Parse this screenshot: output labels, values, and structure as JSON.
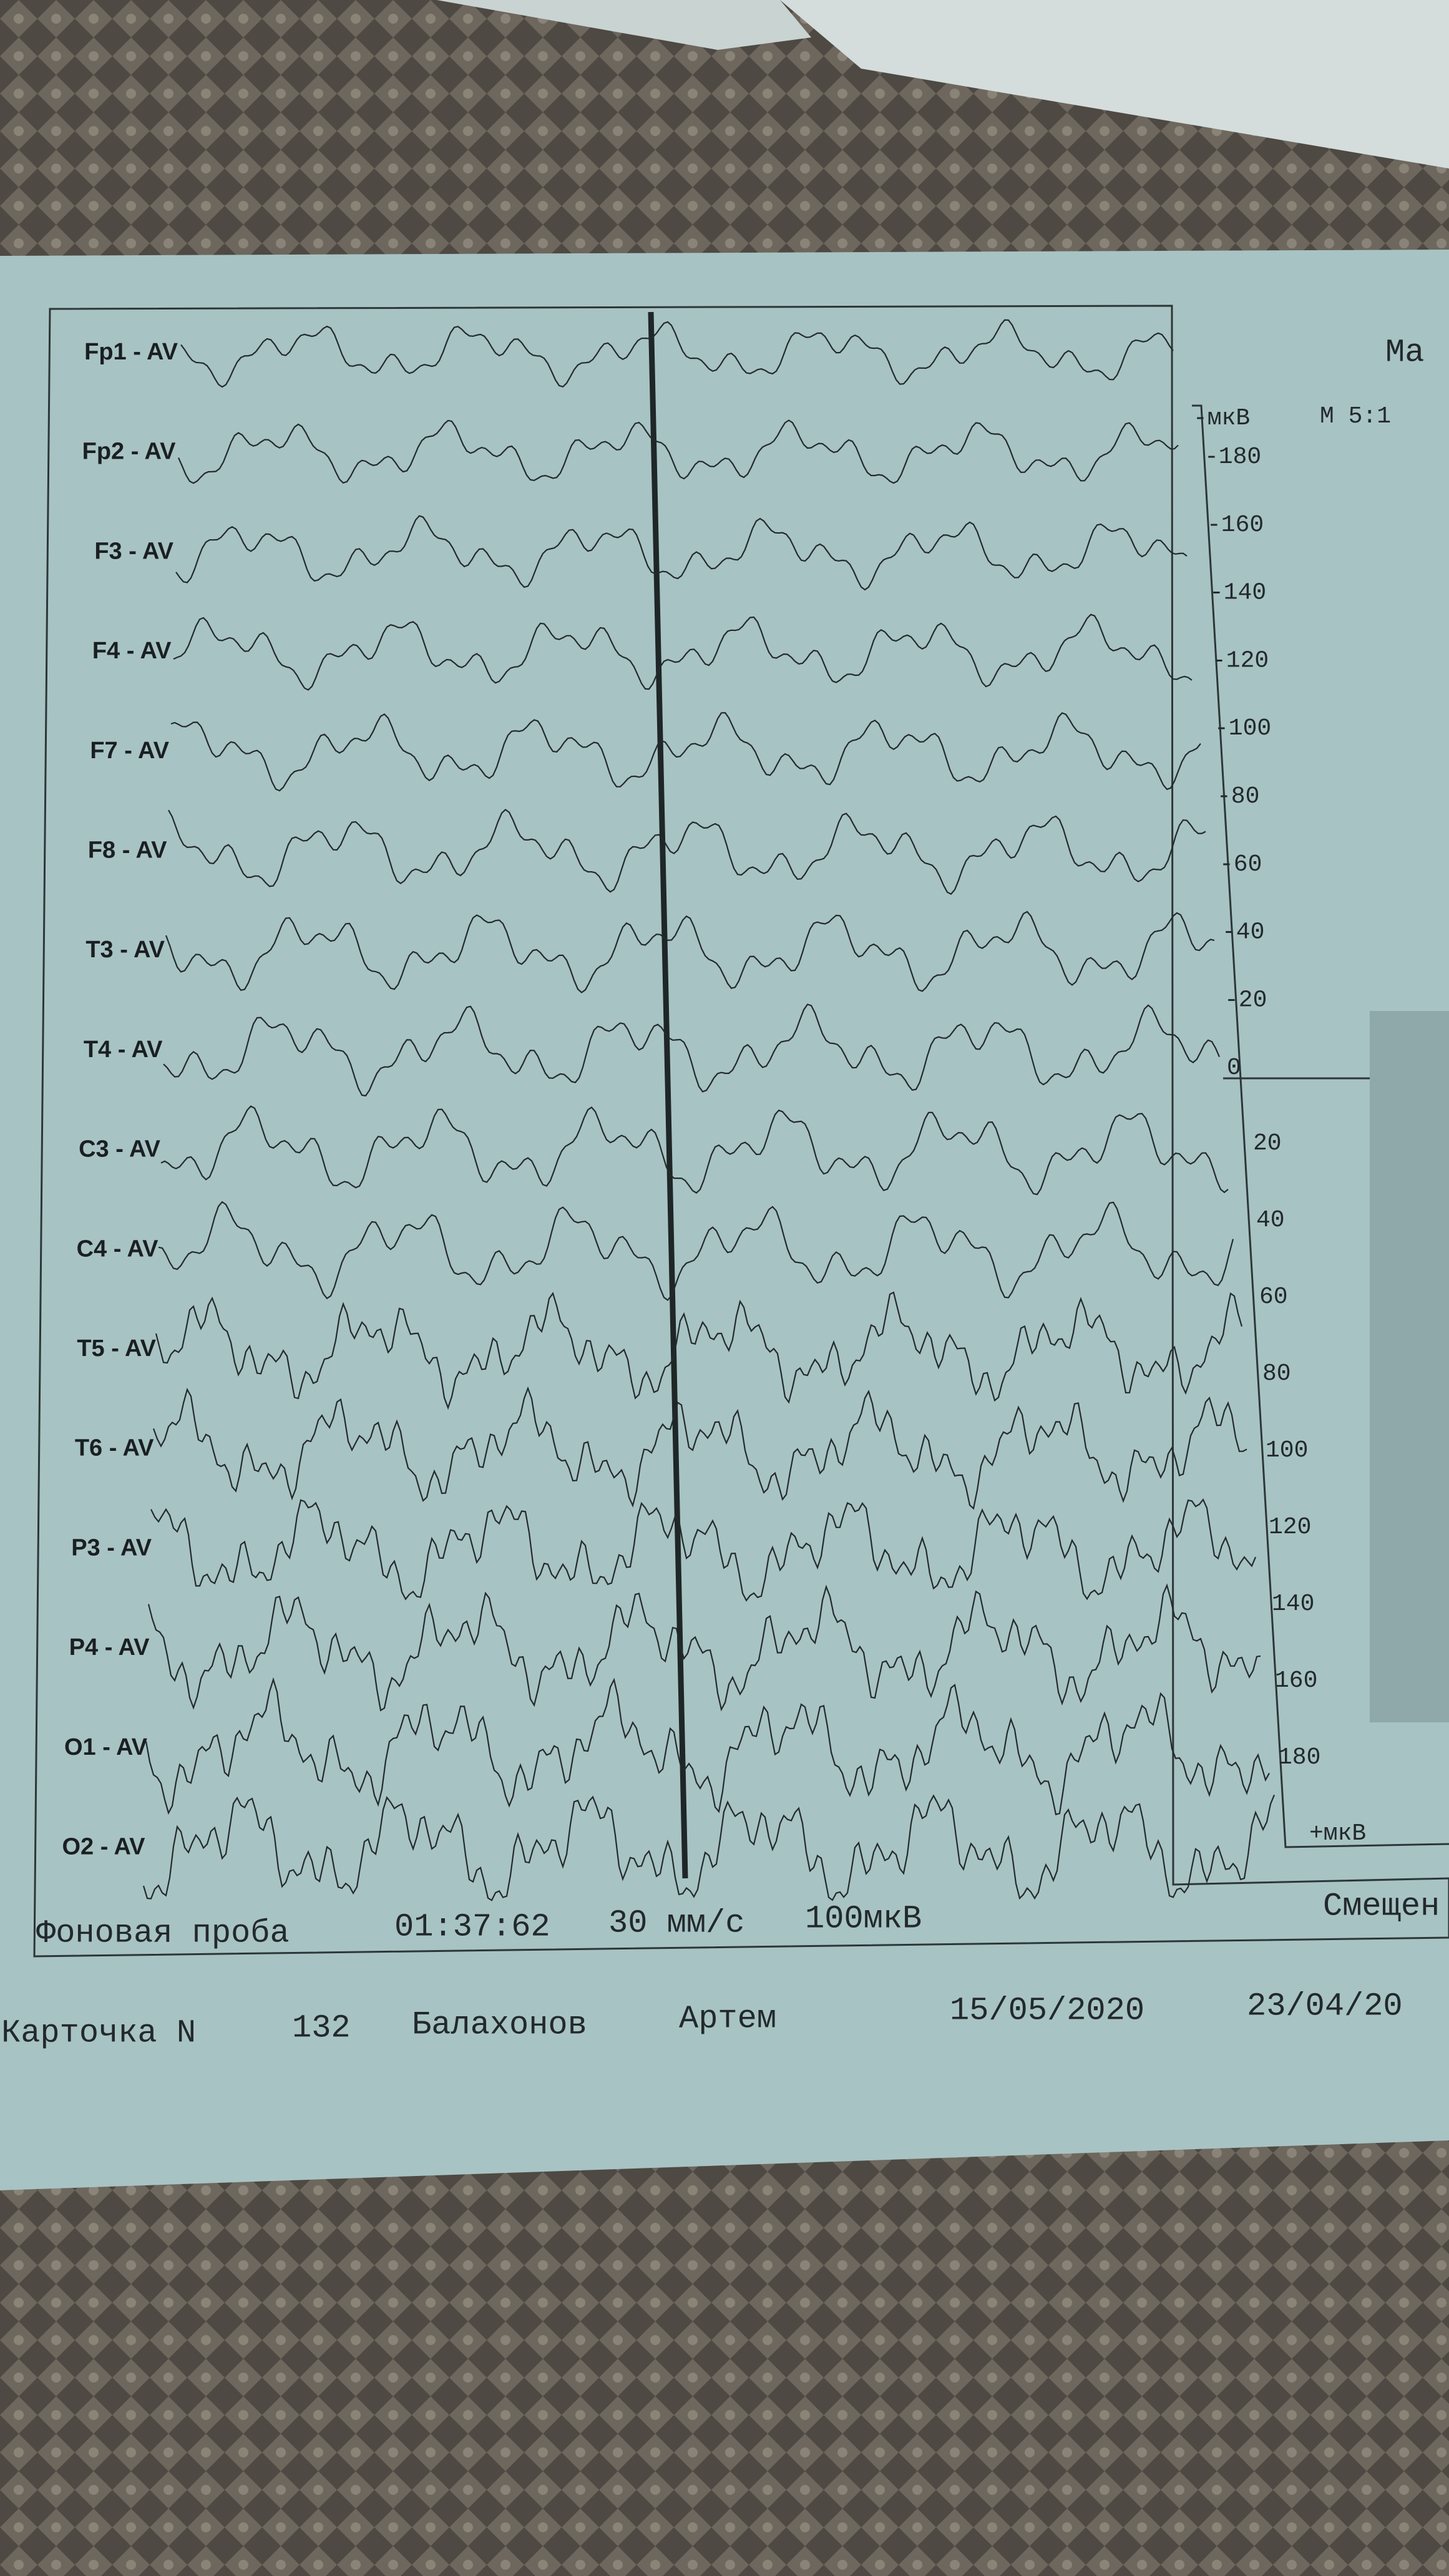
{
  "header": {
    "title": "Ма",
    "scale_ratio": "М 5:1"
  },
  "channels": [
    "Fp1 - AV",
    "Fp2 - AV",
    "F3 - AV",
    "F4 - AV",
    "F7 - AV",
    "F8 - AV",
    "T3 - AV",
    "T4 - AV",
    "C3 - AV",
    "C4 - AV",
    "T5 - AV",
    "T6 - AV",
    "P3 - AV",
    "P4 - AV",
    "O1 - AV",
    "O2 - AV"
  ],
  "scale": {
    "top_unit": "-мкВ",
    "labels": [
      "-180",
      "-160",
      "-140",
      "-120",
      "-100",
      "-80",
      "-60",
      "-40",
      "-20",
      "0",
      "20",
      "40",
      "60",
      "80",
      "100",
      "120",
      "140",
      "160",
      "180"
    ],
    "bottom_unit": "+мкВ"
  },
  "footer": {
    "test": "Фоновая проба",
    "time": "01:37:62",
    "speed": "30 мм/с",
    "sensitivity": "100мкВ",
    "side_label": "Смещен"
  },
  "card": {
    "label": "Карточка N",
    "number": "132",
    "surname": "Балахонов",
    "name": "Артем",
    "date1": "15/05/2020",
    "date2": "23/04/20"
  }
}
